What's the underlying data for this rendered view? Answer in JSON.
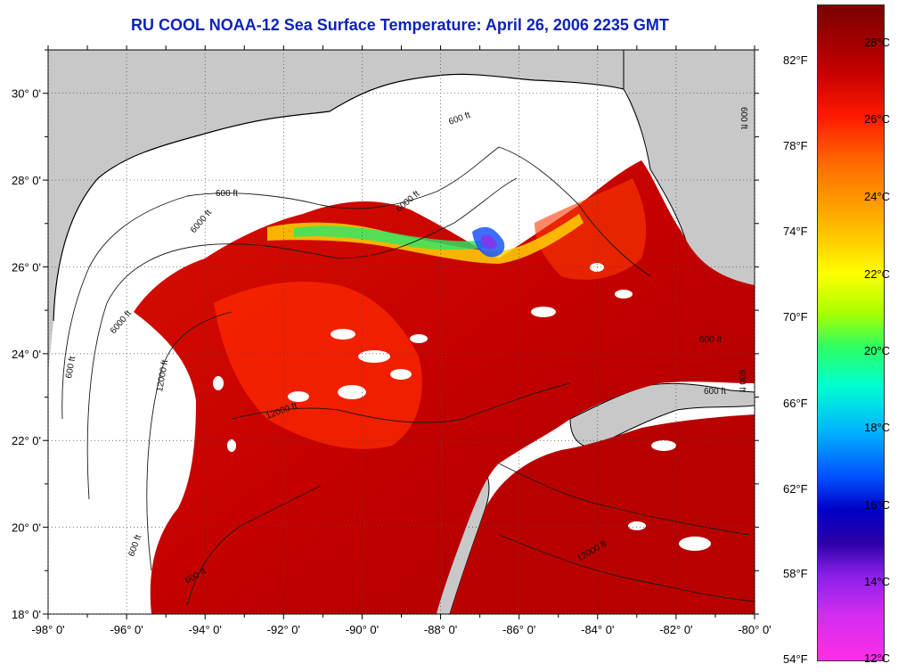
{
  "title": "RU COOL  NOAA-12  Sea Surface Temperature:  April 26, 2006 2235 GMT",
  "map": {
    "lon_range": [
      -98,
      -80
    ],
    "lat_range": [
      18,
      31
    ],
    "x_ticks": [
      "-98° 0'",
      "-96° 0'",
      "-94° 0'",
      "-92° 0'",
      "-90° 0'",
      "-88° 0'",
      "-86° 0'",
      "-84° 0'",
      "-82° 0'",
      "-80° 0'"
    ],
    "y_ticks": [
      "30° 0'",
      "28° 0'",
      "26° 0'",
      "24° 0'",
      "22° 0'",
      "20° 0'",
      "18° 0'"
    ],
    "grid": "dotted",
    "contour_labels": [
      "600 ft",
      "6000 ft",
      "600 ft",
      "600 ft",
      "6000 ft",
      "12000 ft",
      "600 ft",
      "6000 ft",
      "12000 ft",
      "600 ft",
      "600 ft",
      "600 ft",
      "12000 ft",
      "600 ft",
      "600 ft"
    ],
    "colors": {
      "land": "#c8c8c8",
      "cloud": "#ffffff",
      "sea_warm": "#c80000",
      "sea_hot": "#a00000",
      "sea_mid": "#ff2a00",
      "coast": "#000000"
    }
  },
  "colorbar": {
    "fahrenheit": [
      "82°F",
      "78°F",
      "74°F",
      "70°F",
      "66°F",
      "62°F",
      "58°F",
      "54°F"
    ],
    "celsius": [
      "28°C",
      "26°C",
      "24°C",
      "22°C",
      "20°C",
      "18°C",
      "16°C",
      "14°C",
      "12°C"
    ]
  }
}
